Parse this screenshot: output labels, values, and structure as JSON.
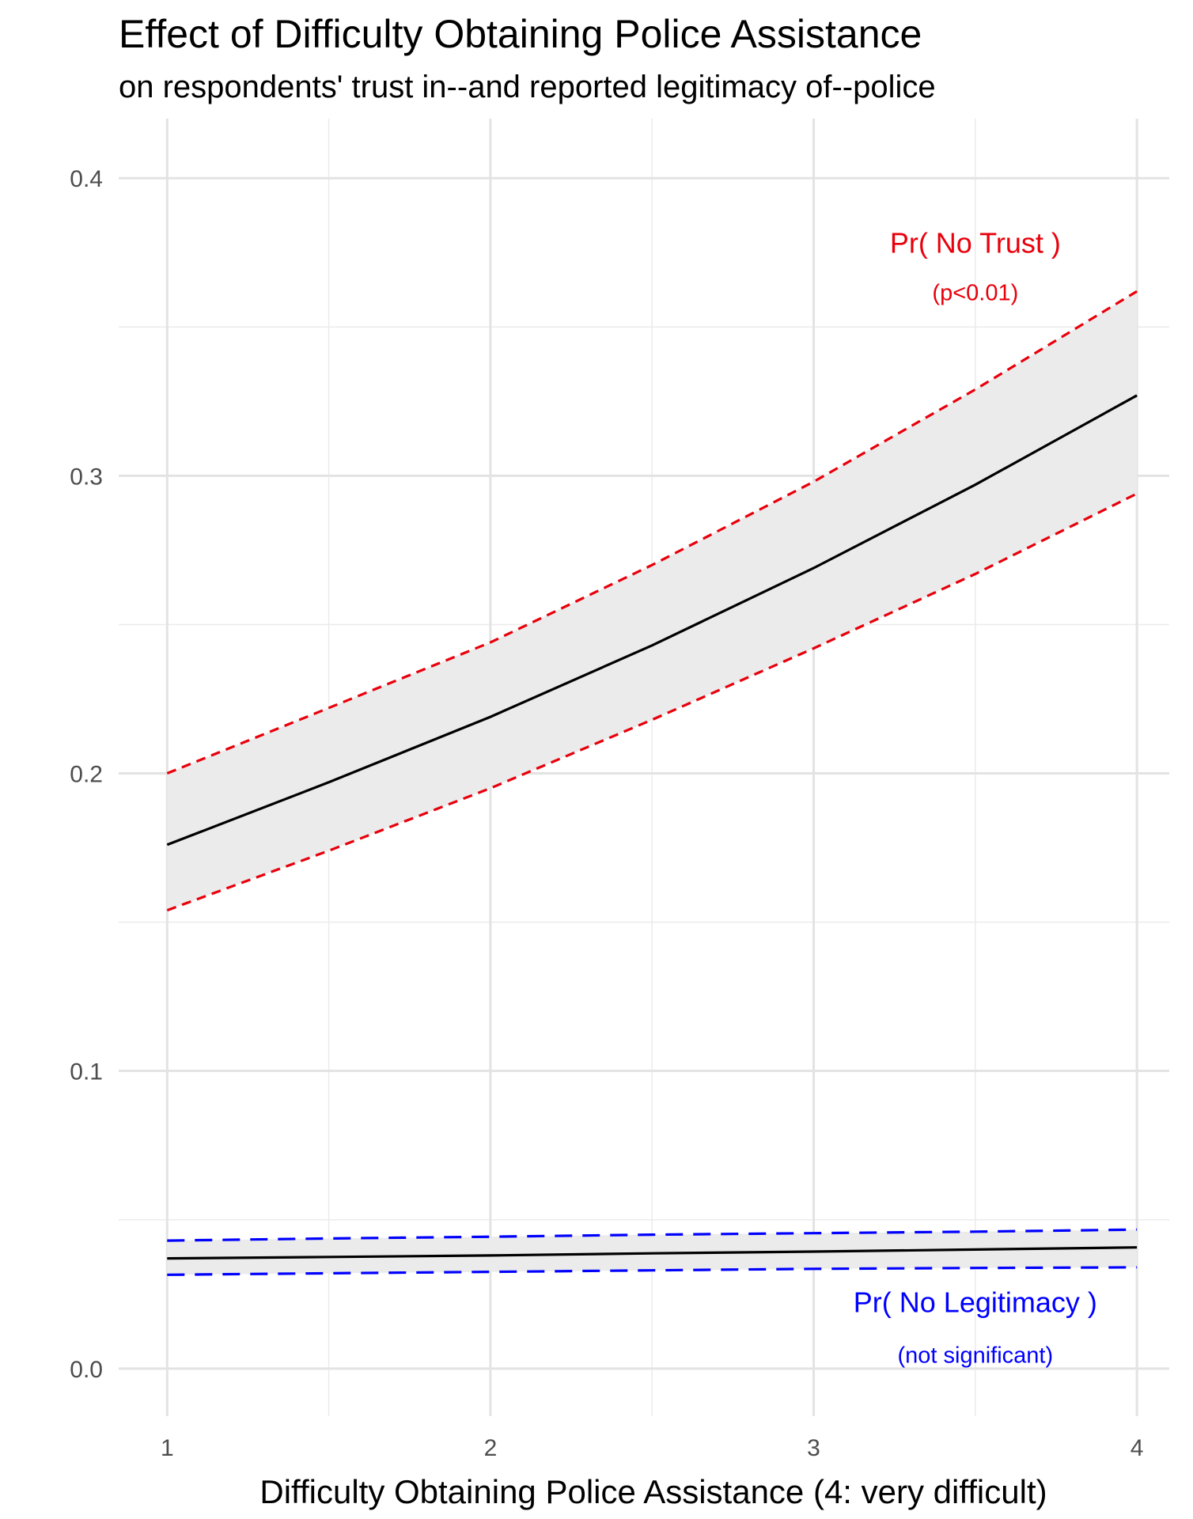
{
  "chart_data": {
    "type": "line",
    "title": "Effect of Difficulty Obtaining Police Assistance",
    "subtitle": "on respondents' trust in--and reported legitimacy of--police",
    "xlabel": "Difficulty Obtaining Police Assistance (4: very difficult)",
    "ylabel": "",
    "xlim": [
      0.85,
      4.1
    ],
    "ylim": [
      -0.016,
      0.42
    ],
    "x_ticks": [
      "1",
      "2",
      "3",
      "4"
    ],
    "y_ticks": [
      "0.0",
      "0.1",
      "0.2",
      "0.3",
      "0.4"
    ],
    "grid": true,
    "series": [
      {
        "x": [
          1,
          1.5,
          2,
          2.5,
          3,
          3.5,
          4
        ],
        "estimate": [
          0.176,
          0.197,
          0.219,
          0.243,
          0.269,
          0.297,
          0.327
        ],
        "lower": [
          0.154,
          0.174,
          0.195,
          0.218,
          0.242,
          0.267,
          0.294
        ],
        "upper": [
          0.2,
          0.222,
          0.244,
          0.27,
          0.298,
          0.329,
          0.362
        ],
        "line_color": "#000000",
        "band_color": "#0000ff",
        "band_style": "short-dash"
      },
      {
        "x": [
          1,
          1.5,
          2,
          2.5,
          3,
          3.5,
          4
        ],
        "estimate": [
          0.037,
          0.0375,
          0.038,
          0.0387,
          0.0393,
          0.04,
          0.0407
        ],
        "lower": [
          0.0315,
          0.032,
          0.0325,
          0.033,
          0.0335,
          0.0338,
          0.034
        ],
        "upper": [
          0.043,
          0.0437,
          0.0443,
          0.045,
          0.0455,
          0.046,
          0.0467
        ],
        "line_color": "#000000",
        "band_color": "#0000ff",
        "band_style": "long-dash"
      }
    ],
    "series_styles": {
      "trust_band_color": "#e8000b",
      "legit_band_color": "#0000ff",
      "ribbon_fill": "#ebebeb"
    },
    "annotations": [
      {
        "text": "Pr( No Trust )",
        "x": 3.5,
        "y": 0.375,
        "color": "#e8000b",
        "size": "large"
      },
      {
        "text": "(p<0.01)",
        "x": 3.5,
        "y": 0.359,
        "color": "#e8000b",
        "size": "small"
      },
      {
        "text": "Pr( No Legitimacy )",
        "x": 3.5,
        "y": 0.019,
        "color": "#0000ff",
        "size": "large"
      },
      {
        "text": "(not significant)",
        "x": 3.5,
        "y": 0.002,
        "color": "#0000ff",
        "size": "small"
      }
    ]
  }
}
